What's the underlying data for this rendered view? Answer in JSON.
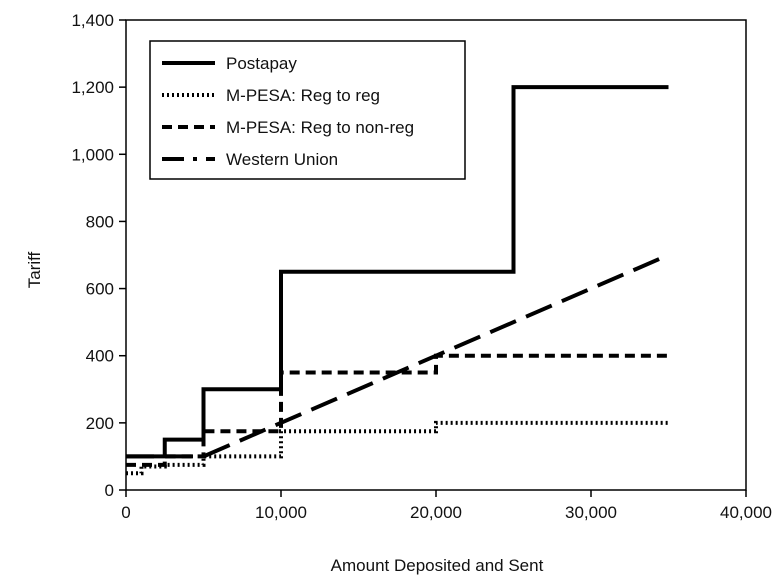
{
  "chart_data": {
    "type": "line",
    "title": "",
    "xlabel": "Amount Deposited and Sent",
    "ylabel": "Tariff",
    "xlim": [
      0,
      40000
    ],
    "ylim": [
      0,
      1400
    ],
    "x_ticks": [
      0,
      10000,
      20000,
      30000,
      40000
    ],
    "x_tick_labels": [
      "0",
      "10,000",
      "20,000",
      "30,000",
      "40,000"
    ],
    "y_ticks": [
      0,
      200,
      400,
      600,
      800,
      1000,
      1200,
      1400
    ],
    "y_tick_labels": [
      "0",
      "200",
      "400",
      "600",
      "800",
      "1,000",
      "1,200",
      "1,400"
    ],
    "grid": false,
    "legend_position": "top-left",
    "series": [
      {
        "name": "Postapay",
        "style": "solid",
        "color": "#000000",
        "x": [
          0,
          2500,
          2500,
          5000,
          5000,
          10000,
          10000,
          25000,
          25000,
          35000
        ],
        "y": [
          100,
          100,
          150,
          150,
          300,
          300,
          650,
          650,
          1200,
          1200
        ]
      },
      {
        "name": "M-PESA: Reg to reg",
        "style": "dotted",
        "color": "#000000",
        "x": [
          0,
          1000,
          1000,
          2500,
          2500,
          5000,
          5000,
          10000,
          10000,
          20000,
          20000,
          35000
        ],
        "y": [
          50,
          50,
          70,
          70,
          75,
          75,
          100,
          100,
          175,
          175,
          200,
          200
        ]
      },
      {
        "name": "M-PESA: Reg to non-reg",
        "style": "dashed",
        "color": "#000000",
        "x": [
          0,
          2500,
          2500,
          5000,
          5000,
          10000,
          10000,
          20000,
          20000,
          35000
        ],
        "y": [
          75,
          75,
          100,
          100,
          175,
          175,
          350,
          350,
          400,
          400
        ]
      },
      {
        "name": "Western Union",
        "style": "long-dash",
        "color": "#000000",
        "x": [
          0,
          5000,
          35000
        ],
        "y": [
          100,
          100,
          700
        ]
      }
    ]
  }
}
